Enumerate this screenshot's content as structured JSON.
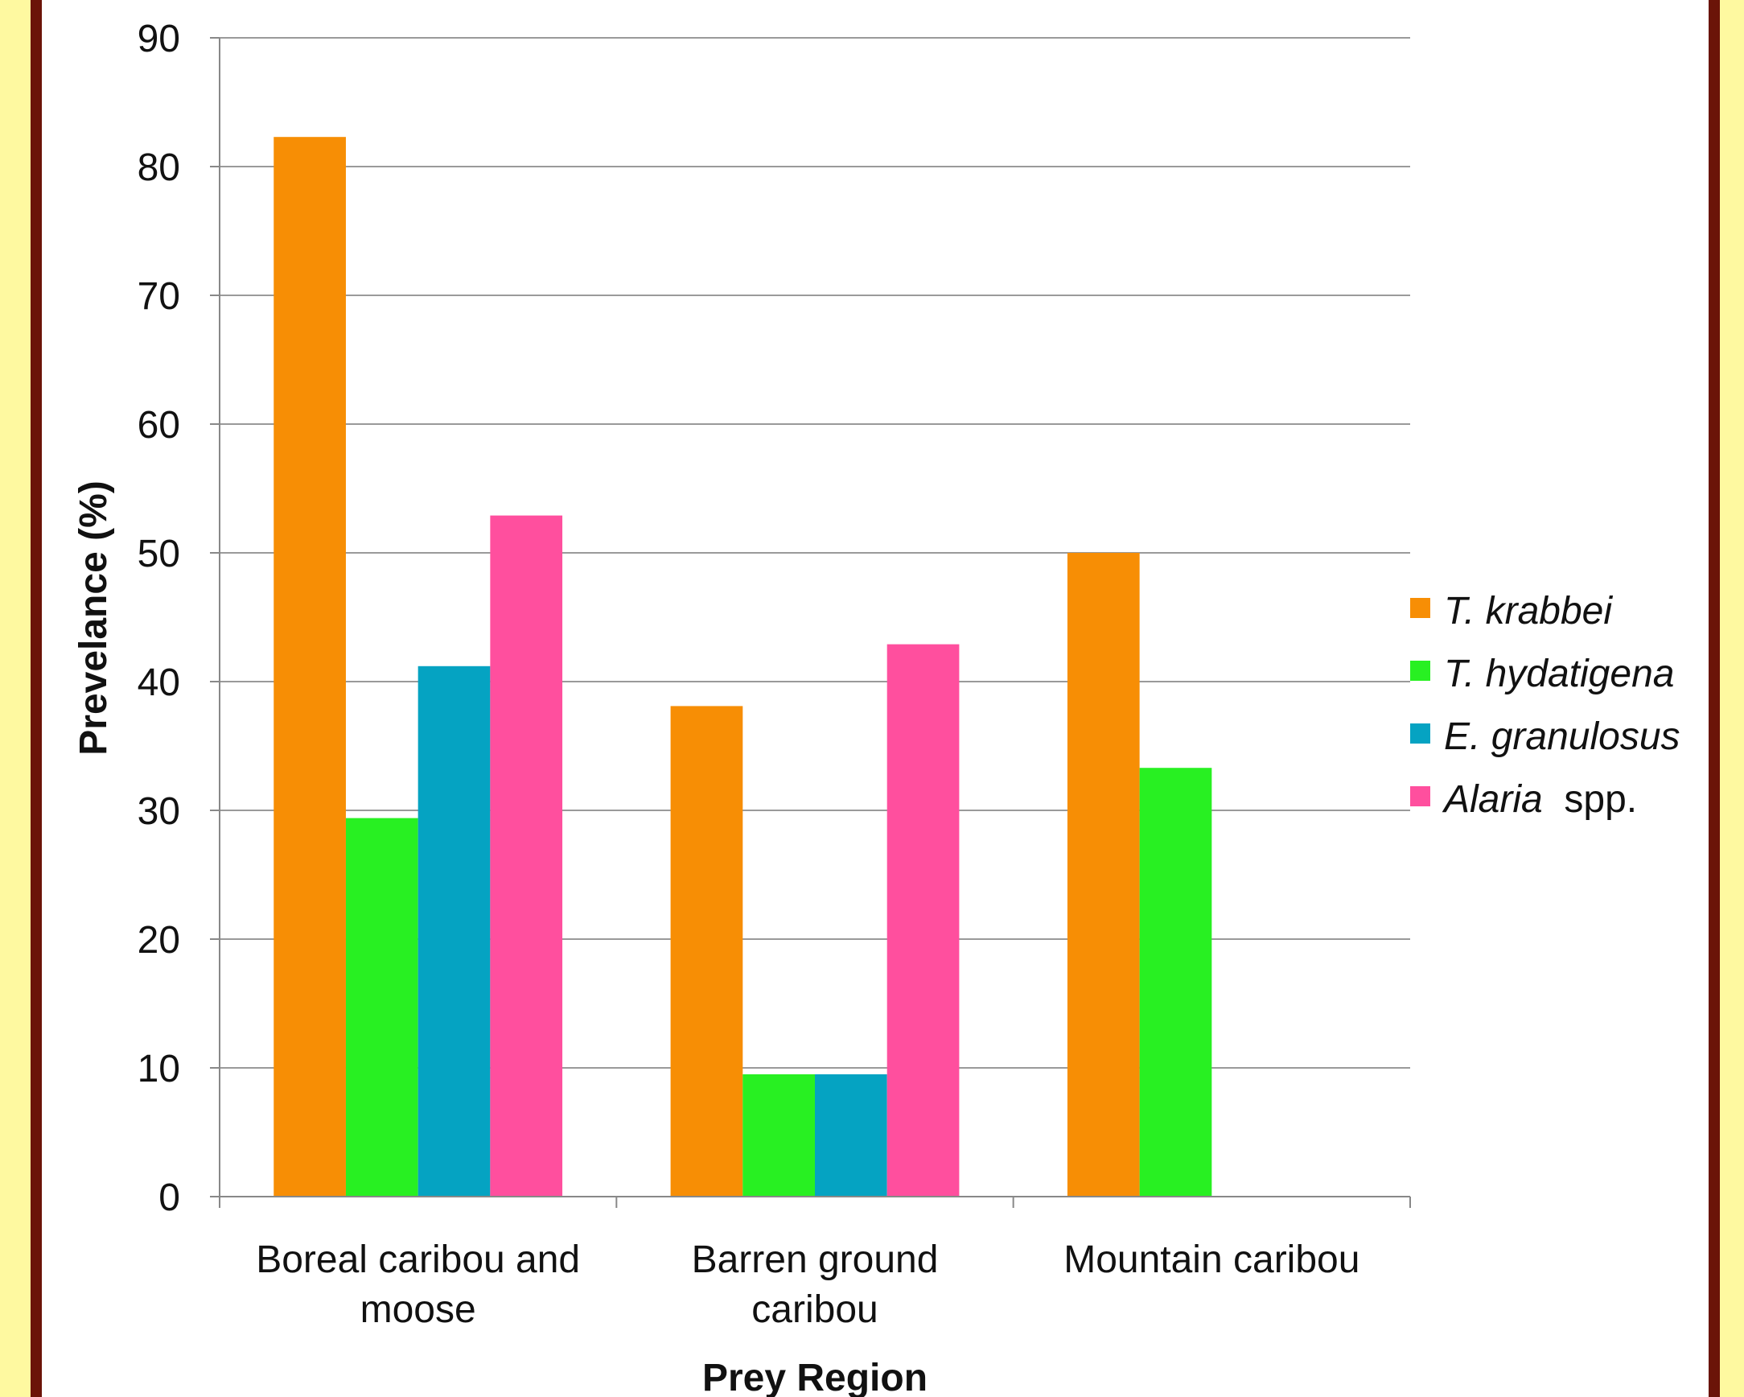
{
  "page": {
    "background": "#fef9a0",
    "border_color": "#6b1408",
    "plot_background": "#ffffff"
  },
  "chart_data": {
    "type": "bar",
    "title": "",
    "xlabel": "Prey Region",
    "ylabel": "Prevelance (%)",
    "ylim": [
      0,
      90
    ],
    "yticks": [
      0,
      10,
      20,
      30,
      40,
      50,
      60,
      70,
      80,
      90
    ],
    "grid": true,
    "legend_position": "right",
    "categories": [
      [
        "Boreal caribou and",
        "moose"
      ],
      [
        "Barren ground",
        "caribou"
      ],
      [
        "Mountain caribou"
      ]
    ],
    "series": [
      {
        "name": "T. krabbei",
        "name_italic": "T. krabbei",
        "name_suffix": "",
        "color": "#f78e05",
        "values": [
          82.3,
          38.1,
          50.0
        ]
      },
      {
        "name": "T. hydatigena",
        "name_italic": "T. hydatigena",
        "name_suffix": "",
        "color": "#28f022",
        "values": [
          29.4,
          9.5,
          33.3
        ]
      },
      {
        "name": "E. granulosus",
        "name_italic": "E. granulosus",
        "name_suffix": "",
        "color": "#05a3c2",
        "values": [
          41.2,
          9.5,
          null
        ]
      },
      {
        "name": "Alaria spp.",
        "name_italic": "Alaria",
        "name_suffix": "spp.",
        "color": "#ff4f9e",
        "values": [
          52.9,
          42.9,
          null
        ]
      }
    ]
  }
}
